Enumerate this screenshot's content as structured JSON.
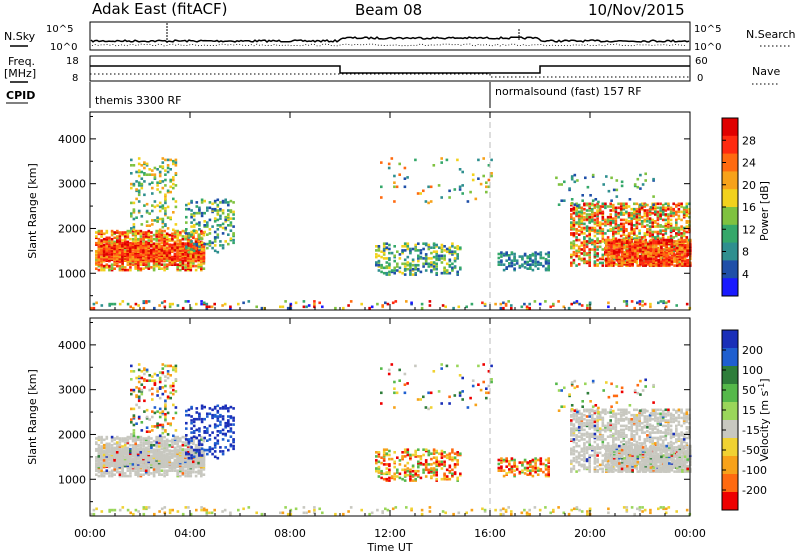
{
  "header": {
    "station": "Adak East (fitACF)",
    "beam": "Beam 08",
    "date": "10/Nov/2015"
  },
  "panel_labels": {
    "nsky_top": "N.Sky",
    "nsearch": "N.Search",
    "freq": "Freq.",
    "freq_unit": "[MHz]",
    "nave": "Nave",
    "cpid": "CPID"
  },
  "noise_axis": {
    "left_ticks": [
      "10^5",
      "10^0"
    ],
    "right_ticks": [
      "10^5",
      "10^0"
    ]
  },
  "freq_axis": {
    "left_ticks": [
      "18",
      "8"
    ],
    "right_ticks": [
      "60",
      "0"
    ]
  },
  "cpid_modes": [
    {
      "label": "themis 3300 RF",
      "start_hour": 0
    },
    {
      "label": "normalsound (fast) 157 RF",
      "start_hour": 16
    }
  ],
  "x_axis": {
    "label": "Time UT",
    "ticks": [
      "00:00",
      "04:00",
      "08:00",
      "12:00",
      "16:00",
      "20:00",
      "00:00"
    ],
    "range_hours": [
      0,
      24
    ]
  },
  "y_axis": {
    "label": "Slant Range [km]",
    "ticks": [
      "1000",
      "2000",
      "3000",
      "4000"
    ],
    "range_km": [
      180,
      4600
    ]
  },
  "power_colorbar": {
    "label": "Power [dB]",
    "ticks": [
      "4",
      "8",
      "12",
      "16",
      "20",
      "24",
      "28"
    ],
    "colors": [
      "#1a1aff",
      "#1f4fa8",
      "#2f8f8f",
      "#35a86a",
      "#7fc240",
      "#f2d21c",
      "#f7a21a",
      "#ff6a10",
      "#ff2a10",
      "#e00000"
    ]
  },
  "velocity_colorbar": {
    "label": "Velocity [m s",
    "label_sup": "-1",
    "label_end": "]",
    "ticks": [
      "200",
      "100",
      "50",
      "15",
      "-15",
      "-50",
      "-100",
      "-200"
    ],
    "colors": [
      "#1a2fb8",
      "#1f5fd0",
      "#2e7d3a",
      "#55b84a",
      "#9ad65a",
      "#c8c8c0",
      "#f0d232",
      "#f7a21a",
      "#ff6a10",
      "#ee0000"
    ]
  },
  "series_colors": {
    "noise": "#000000",
    "cpid_marker": "#999999"
  }
}
